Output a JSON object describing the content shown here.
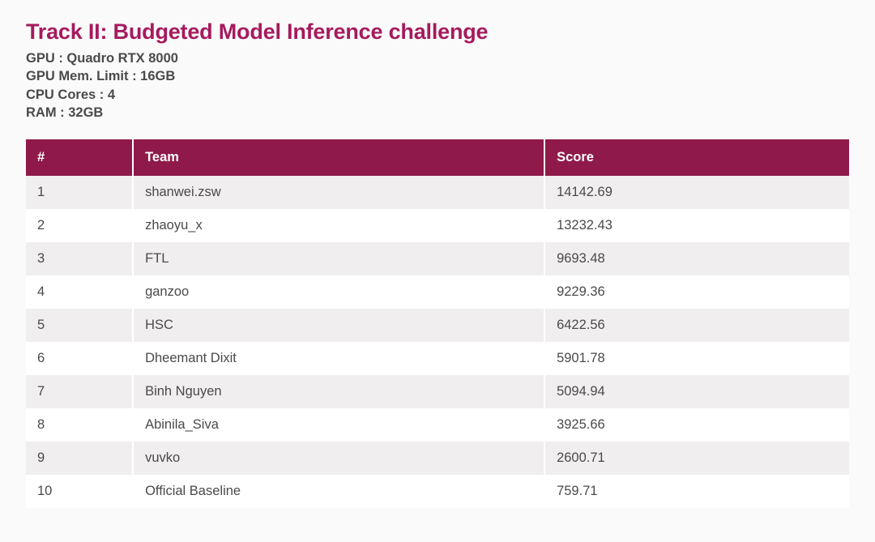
{
  "title": "Track II: Budgeted Model Inference challenge",
  "title_color": "#a61a5e",
  "specs": [
    "GPU : Quadro RTX 8000",
    "GPU Mem. Limit : 16GB",
    "CPU Cores : 4",
    "RAM : 32GB"
  ],
  "specs_text_color": "#4a4a4a",
  "table": {
    "type": "table",
    "header_bg": "#8f1a49",
    "header_text_color": "#ffffff",
    "row_odd_bg": "#f0eeee",
    "row_even_bg": "#ffffff",
    "cell_text_color": "#4a4a4a",
    "vertical_gap_color": "#ffffff",
    "font_size_pt": 12,
    "columns": [
      {
        "key": "rank",
        "label": "#",
        "width_pct": 13
      },
      {
        "key": "team",
        "label": "Team",
        "width_pct": 50
      },
      {
        "key": "score",
        "label": "Score",
        "width_pct": 37
      }
    ],
    "rows": [
      {
        "rank": "1",
        "team": "shanwei.zsw",
        "score": "14142.69"
      },
      {
        "rank": "2",
        "team": "zhaoyu_x",
        "score": "13232.43"
      },
      {
        "rank": "3",
        "team": "FTL",
        "score": "9693.48"
      },
      {
        "rank": "4",
        "team": "ganzoo",
        "score": "9229.36"
      },
      {
        "rank": "5",
        "team": "HSC",
        "score": "6422.56"
      },
      {
        "rank": "6",
        "team": "Dheemant Dixit",
        "score": "5901.78"
      },
      {
        "rank": "7",
        "team": "Binh Nguyen",
        "score": "5094.94"
      },
      {
        "rank": "8",
        "team": "Abinila_Siva",
        "score": "3925.66"
      },
      {
        "rank": "9",
        "team": "vuvko",
        "score": "2600.71"
      },
      {
        "rank": "10",
        "team": "Official Baseline",
        "score": "759.71"
      }
    ]
  }
}
